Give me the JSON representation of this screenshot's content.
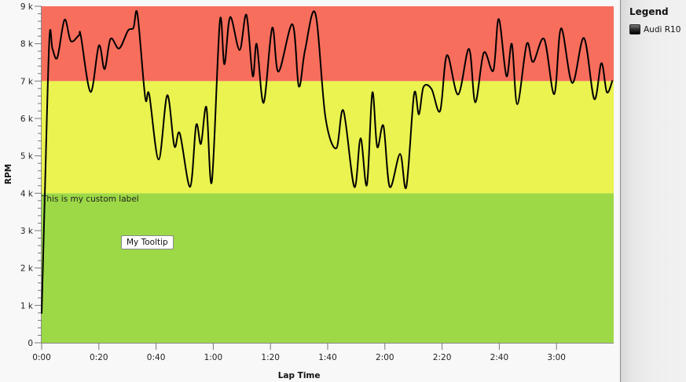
{
  "chart_data": {
    "type": "line",
    "title": "",
    "xlabel": "Lap Time",
    "ylabel": "RPM",
    "xlim_seconds": [
      0,
      200
    ],
    "ylim": [
      0,
      9000
    ],
    "x_ticks": [
      "0:00",
      "0:20",
      "0:40",
      "1:00",
      "1:20",
      "1:40",
      "2:00",
      "2:20",
      "2:40",
      "3:00"
    ],
    "x_tick_seconds": [
      0,
      20,
      40,
      60,
      80,
      100,
      120,
      140,
      160,
      180
    ],
    "y_ticks": [
      "0",
      "1 k",
      "2 k",
      "3 k",
      "4 k",
      "5 k",
      "6 k",
      "7 k",
      "8 k",
      "9 k"
    ],
    "y_tick_values": [
      0,
      1000,
      2000,
      3000,
      4000,
      5000,
      6000,
      7000,
      8000,
      9000
    ],
    "y_minor_ticks_per_major": 5,
    "grid": false,
    "legend_position": "right",
    "bands": [
      {
        "from": 0,
        "to": 4000,
        "color": "#9dd946"
      },
      {
        "from": 4000,
        "to": 7000,
        "color": "#eaf34f"
      },
      {
        "from": 7000,
        "to": 9000,
        "color": "#f76e5d"
      }
    ],
    "series": [
      {
        "name": "Audi R10",
        "color": "#000000",
        "points": [
          [
            0.0,
            780
          ],
          [
            1.1,
            3930
          ],
          [
            2.7,
            8120
          ],
          [
            3.8,
            7860
          ],
          [
            5.5,
            7630
          ],
          [
            8.0,
            8640
          ],
          [
            10.2,
            8070
          ],
          [
            13.0,
            8220
          ],
          [
            13.7,
            8200
          ],
          [
            17.1,
            6710
          ],
          [
            20.0,
            7950
          ],
          [
            22.0,
            7320
          ],
          [
            24.1,
            8130
          ],
          [
            27.1,
            7870
          ],
          [
            30.2,
            8350
          ],
          [
            32.1,
            8420
          ],
          [
            33.5,
            8790
          ],
          [
            36.2,
            6560
          ],
          [
            37.6,
            6640
          ],
          [
            40.9,
            4900
          ],
          [
            43.9,
            6620
          ],
          [
            46.4,
            5260
          ],
          [
            48.3,
            5600
          ],
          [
            51.9,
            4170
          ],
          [
            54.0,
            5820
          ],
          [
            55.7,
            5320
          ],
          [
            57.6,
            6300
          ],
          [
            59.5,
            4310
          ],
          [
            62.3,
            8600
          ],
          [
            63.9,
            7450
          ],
          [
            65.9,
            8710
          ],
          [
            69.2,
            7830
          ],
          [
            71.6,
            8770
          ],
          [
            73.8,
            7130
          ],
          [
            75.2,
            7990
          ],
          [
            77.6,
            6420
          ],
          [
            80.6,
            8420
          ],
          [
            82.8,
            7250
          ],
          [
            87.7,
            8520
          ],
          [
            89.9,
            6860
          ],
          [
            92.1,
            7830
          ],
          [
            95.7,
            8810
          ],
          [
            99.2,
            6040
          ],
          [
            103.0,
            5200
          ],
          [
            105.5,
            6210
          ],
          [
            109.3,
            4170
          ],
          [
            111.5,
            5470
          ],
          [
            113.7,
            4220
          ],
          [
            115.6,
            6690
          ],
          [
            117.3,
            5240
          ],
          [
            119.5,
            5800
          ],
          [
            121.7,
            4170
          ],
          [
            125.3,
            5050
          ],
          [
            127.5,
            4170
          ],
          [
            130.2,
            6650
          ],
          [
            131.9,
            6110
          ],
          [
            133.5,
            6840
          ],
          [
            136.3,
            6790
          ],
          [
            139.3,
            6200
          ],
          [
            141.7,
            7690
          ],
          [
            145.6,
            6640
          ],
          [
            149.4,
            7860
          ],
          [
            151.6,
            6430
          ],
          [
            154.6,
            7760
          ],
          [
            157.9,
            7280
          ],
          [
            159.8,
            8660
          ],
          [
            162.5,
            7130
          ],
          [
            164.4,
            7990
          ],
          [
            166.3,
            6380
          ],
          [
            169.6,
            7990
          ],
          [
            171.8,
            7510
          ],
          [
            175.7,
            8120
          ],
          [
            179.2,
            6650
          ],
          [
            181.6,
            8410
          ],
          [
            185.5,
            6950
          ],
          [
            189.6,
            8150
          ],
          [
            193.2,
            6520
          ],
          [
            195.7,
            7480
          ],
          [
            197.6,
            6700
          ],
          [
            199.6,
            7020
          ]
        ]
      }
    ],
    "annotations": [
      {
        "text": "This is my custom label",
        "x_seconds": 0,
        "y": 4000
      },
      {
        "text": "My Tooltip",
        "type": "tooltip",
        "x_seconds": 36,
        "y": 2700
      }
    ]
  },
  "chart": {
    "y_axis_title": "RPM",
    "x_axis_title": "Lap Time",
    "custom_label": "This is my custom label",
    "tooltip_text": "My Tooltip"
  },
  "legend": {
    "title": "Legend",
    "items": [
      {
        "label": "Audi R10",
        "color": "#000000"
      }
    ]
  }
}
